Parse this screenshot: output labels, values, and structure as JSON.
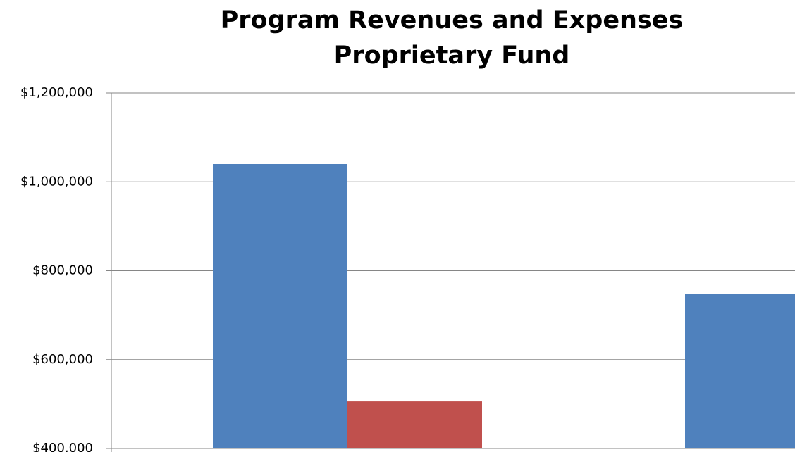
{
  "chart_data": {
    "type": "bar",
    "title": [
      "Program Revenues and Expenses",
      "Proprietary Fund"
    ],
    "categories": [
      null,
      null
    ],
    "series": [
      {
        "color": "#4f81bd",
        "values": [
          1040000,
          748000
        ]
      },
      {
        "color": "#c0504d",
        "values": [
          506000,
          null
        ]
      }
    ],
    "ylim": [
      400000,
      1200000
    ],
    "yticks": [
      {
        "value": 400000,
        "label": "$400,000"
      },
      {
        "value": 600000,
        "label": "$600,000"
      },
      {
        "value": 800000,
        "label": "$800,000"
      },
      {
        "value": 1000000,
        "label": "$1,000,000"
      },
      {
        "value": 1200000,
        "label": "$1,200,000"
      }
    ],
    "grid": true
  }
}
